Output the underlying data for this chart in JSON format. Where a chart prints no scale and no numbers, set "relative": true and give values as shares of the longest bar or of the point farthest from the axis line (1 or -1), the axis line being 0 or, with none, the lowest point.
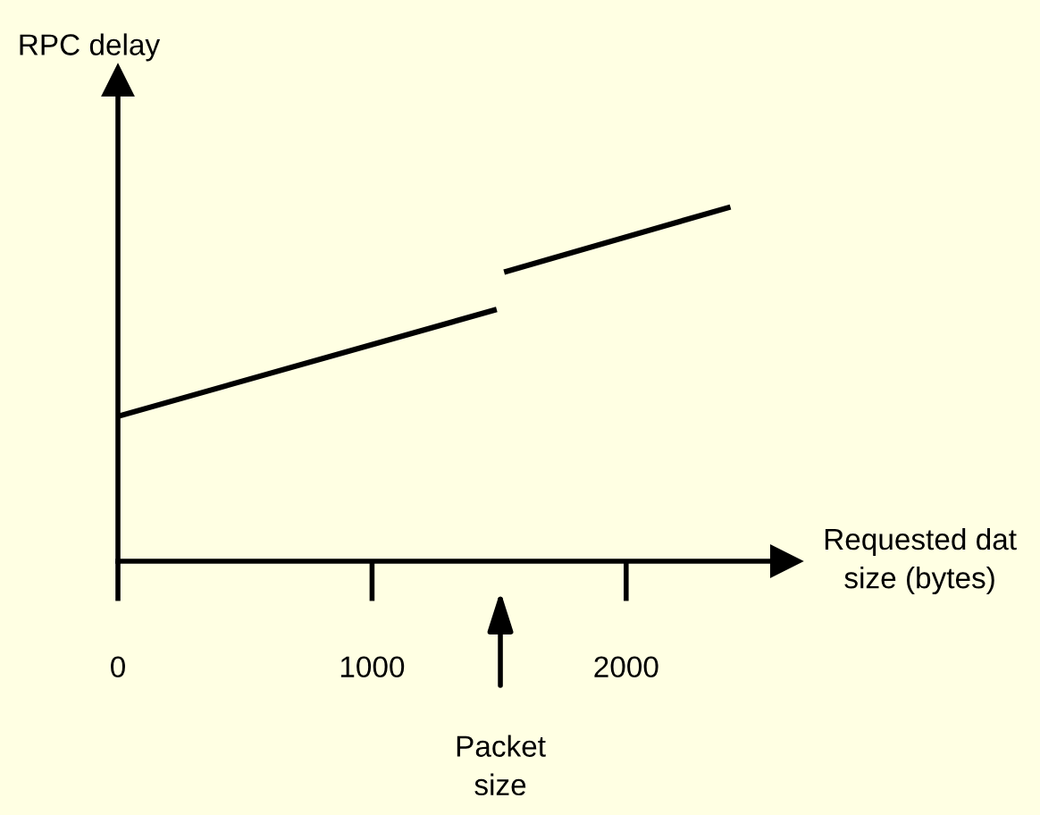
{
  "chart_data": {
    "type": "line",
    "relative": true,
    "xlabel": "Requested dat\nsize (bytes)",
    "ylabel": "RPC delay",
    "xlim": [
      0,
      2630
    ],
    "xticks": [
      0,
      1000,
      2000
    ],
    "grid": false,
    "legend": false,
    "marker": "none",
    "line_style": "solid",
    "series": [
      {
        "color": "#000000",
        "x": [
          0,
          1480
        ],
        "values": [
          0.41,
          0.71
        ]
      },
      {
        "color": "#000000",
        "x": [
          1530,
          2400
        ],
        "values": [
          0.82,
          1.0
        ]
      }
    ],
    "annotations": [
      "Packet\nsize"
    ]
  }
}
